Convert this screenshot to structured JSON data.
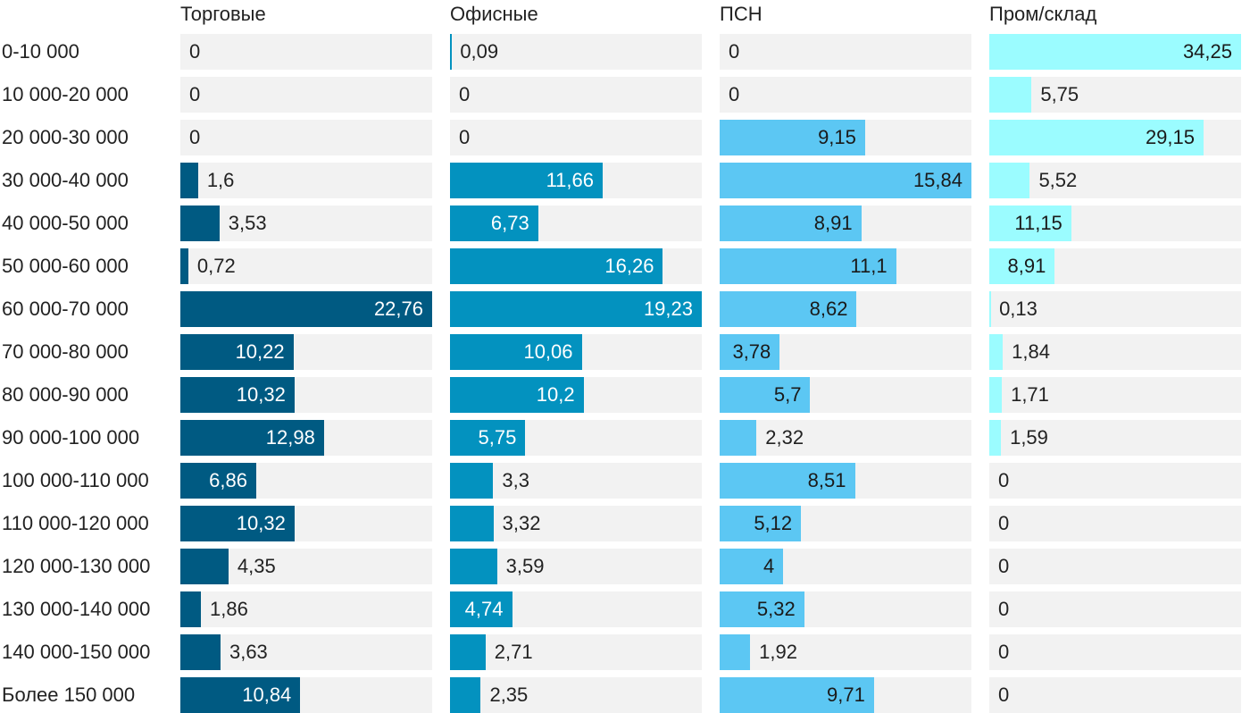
{
  "chart_data": {
    "type": "bar",
    "orientation": "horizontal",
    "layout": "small-multiples",
    "categories": [
      "0-10 000",
      "10 000-20 000",
      "20 000-30 000",
      "30 000-40 000",
      "40 000-50 000",
      "50 000-60 000",
      "60 000-70 000",
      "70 000-80 000",
      "80 000-90 000",
      "90 000-100 000",
      "100 000-110 000",
      "110 000-120 000",
      "120 000-130 000",
      "130 000-140 000",
      "140 000-150 000",
      "Более 150 000"
    ],
    "series": [
      {
        "name": "Торговые",
        "color": "#005a82",
        "text_inside": "#ffffff",
        "values": [
          0,
          0,
          0,
          1.6,
          3.53,
          0.72,
          22.76,
          10.22,
          10.32,
          12.98,
          6.86,
          10.32,
          4.35,
          1.86,
          3.63,
          10.84
        ],
        "labels": [
          "0",
          "0",
          "0",
          "1,6",
          "3,53",
          "0,72",
          "22,76",
          "10,22",
          "10,32",
          "12,98",
          "6,86",
          "10,32",
          "4,35",
          "1,86",
          "3,63",
          "10,84"
        ]
      },
      {
        "name": "Офисные",
        "color": "#0392bf",
        "text_inside": "#ffffff",
        "values": [
          0.09,
          0,
          0,
          11.66,
          6.73,
          16.26,
          19.23,
          10.06,
          10.2,
          5.75,
          3.3,
          3.32,
          3.59,
          4.74,
          2.71,
          2.35
        ],
        "labels": [
          "0,09",
          "0",
          "0",
          "11,66",
          "6,73",
          "16,26",
          "19,23",
          "10,06",
          "10,2",
          "5,75",
          "3,3",
          "3,32",
          "3,59",
          "4,74",
          "2,71",
          "2,35"
        ]
      },
      {
        "name": "ПСН",
        "color": "#5cc7f3",
        "text_inside": "#1a1a1a",
        "values": [
          0,
          0,
          9.15,
          15.84,
          8.91,
          11.1,
          8.62,
          3.78,
          5.7,
          2.32,
          8.51,
          5.12,
          4,
          5.32,
          1.92,
          9.71
        ],
        "labels": [
          "0",
          "0",
          "9,15",
          "15,84",
          "8,91",
          "11,1",
          "8,62",
          "3,78",
          "5,7",
          "2,32",
          "8,51",
          "5,12",
          "4",
          "5,32",
          "1,92",
          "9,71"
        ]
      },
      {
        "name": "Пром/склад",
        "color": "#9bfcff",
        "text_inside": "#1a1a1a",
        "values": [
          34.25,
          5.75,
          29.15,
          5.52,
          11.15,
          8.91,
          0.13,
          1.84,
          1.71,
          1.59,
          0,
          0,
          0,
          0,
          0,
          0
        ],
        "labels": [
          "34,25",
          "5,75",
          "29,15",
          "5,52",
          "11,15",
          "8,91",
          "0,13",
          "1,84",
          "1,71",
          "1,59",
          "0",
          "0",
          "0",
          "0",
          "0",
          "0"
        ]
      }
    ]
  }
}
